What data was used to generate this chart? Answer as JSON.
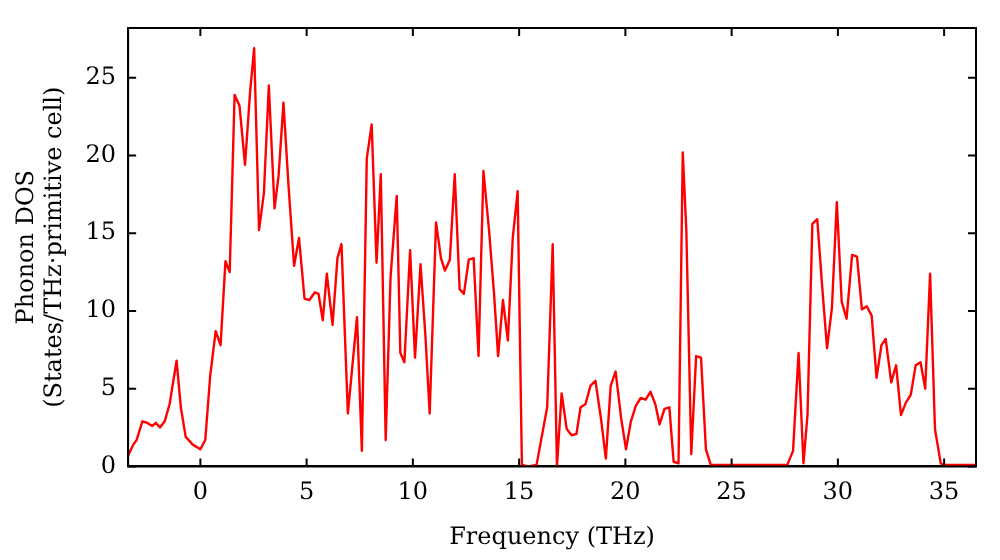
{
  "chart_data": {
    "type": "line",
    "xlabel": "Frequency (THz)",
    "ylabel": "Phonon DOS\n(States/THz·primitive cell)",
    "x": [
      -3.4,
      -3.16,
      -3.0,
      -2.73,
      -2.5,
      -2.27,
      -2.1,
      -1.9,
      -1.68,
      -1.45,
      -1.12,
      -0.92,
      -0.69,
      -0.36,
      0,
      0.23,
      0.46,
      0.72,
      0.95,
      1.18,
      1.38,
      1.61,
      1.84,
      2.1,
      2.34,
      2.53,
      2.76,
      2.99,
      3.22,
      3.49,
      3.68,
      3.91,
      4.14,
      4.41,
      4.64,
      4.9,
      5.13,
      5.39,
      5.56,
      5.76,
      5.95,
      6.22,
      6.45,
      6.64,
      6.94,
      7.37,
      7.6,
      7.83,
      8.06,
      8.29,
      8.49,
      8.72,
      8.95,
      9.24,
      9.41,
      9.6,
      9.87,
      10.1,
      10.36,
      10.59,
      10.79,
      11.09,
      11.32,
      11.51,
      11.74,
      11.97,
      12.2,
      12.4,
      12.63,
      12.86,
      13.09,
      13.32,
      13.59,
      13.82,
      14.01,
      14.24,
      14.47,
      14.7,
      14.93,
      15.13,
      15.43,
      15.82,
      16.32,
      16.58,
      16.78,
      17.0,
      17.24,
      17.47,
      17.7,
      17.89,
      18.12,
      18.36,
      18.59,
      18.85,
      19.08,
      19.31,
      19.54,
      19.8,
      20.03,
      20.26,
      20.49,
      20.72,
      20.95,
      21.18,
      21.41,
      21.61,
      21.84,
      22.07,
      22.27,
      22.5,
      22.7,
      22.87,
      23.1,
      23.33,
      23.56,
      23.79,
      24.02,
      25,
      27.62,
      27.89,
      28.15,
      28.38,
      28.57,
      28.8,
      29.03,
      29.26,
      29.49,
      29.72,
      29.95,
      30.18,
      30.41,
      30.67,
      30.9,
      31.13,
      31.36,
      31.59,
      31.82,
      32.05,
      32.25,
      32.51,
      32.74,
      32.97,
      33.2,
      33.43,
      33.66,
      33.89,
      34.11,
      34.34,
      34.57,
      34.84,
      35.0,
      36.5
    ],
    "series": [
      {
        "color": "#ff0000",
        "values": [
          0.7,
          1.4,
          1.7,
          2.9,
          2.8,
          2.6,
          2.8,
          2.5,
          2.9,
          4.0,
          6.8,
          3.8,
          1.9,
          1.4,
          1.1,
          1.7,
          5.8,
          8.7,
          7.8,
          13.2,
          12.5,
          23.9,
          23.2,
          19.4,
          24.1,
          26.9,
          15.2,
          17.6,
          24.5,
          16.6,
          18.7,
          23.4,
          18.2,
          12.9,
          14.7,
          10.8,
          10.7,
          11.2,
          11.1,
          9.4,
          12.4,
          9.1,
          13.4,
          14.3,
          3.4,
          9.6,
          1.0,
          19.8,
          22.0,
          13.1,
          18.8,
          1.7,
          12.2,
          17.4,
          7.3,
          6.7,
          13.9,
          7.0,
          13.0,
          8.4,
          3.4,
          15.7,
          13.4,
          12.6,
          13.3,
          18.8,
          11.4,
          11.1,
          13.3,
          13.4,
          7.1,
          19.0,
          15.1,
          11.1,
          7.1,
          10.7,
          8.1,
          14.7,
          17.7,
          0.1,
          0,
          0.1,
          3.8,
          14.3,
          0,
          4.7,
          2.4,
          2.0,
          2.1,
          3.8,
          4.0,
          5.2,
          5.5,
          3.1,
          0.5,
          5.2,
          6.1,
          3.1,
          1.1,
          2.9,
          3.9,
          4.4,
          4.3,
          4.8,
          4.0,
          2.7,
          3.7,
          3.8,
          0.3,
          0.2,
          20.2,
          15.1,
          0.8,
          7.1,
          7.0,
          1.1,
          0.1,
          0.1,
          0.1,
          1.0,
          7.3,
          0.2,
          3.3,
          15.6,
          15.9,
          11.6,
          7.6,
          10.2,
          17.0,
          10.6,
          9.5,
          13.6,
          13.5,
          10.1,
          10.3,
          9.7,
          5.7,
          7.8,
          8.2,
          5.4,
          6.5,
          3.3,
          4.1,
          4.6,
          6.5,
          6.7,
          5.0,
          12.4,
          2.4,
          0.2,
          0.1,
          0.1
        ]
      }
    ],
    "xlim": [
      -3.4,
      36.5
    ],
    "xticks": [
      0,
      5,
      10,
      15,
      20,
      25,
      30,
      35
    ],
    "ylim": [
      0,
      28.2
    ],
    "yticks": [
      0,
      5,
      10,
      15,
      20,
      25
    ],
    "marker": "none",
    "line_style": "solid",
    "legend": false
  }
}
